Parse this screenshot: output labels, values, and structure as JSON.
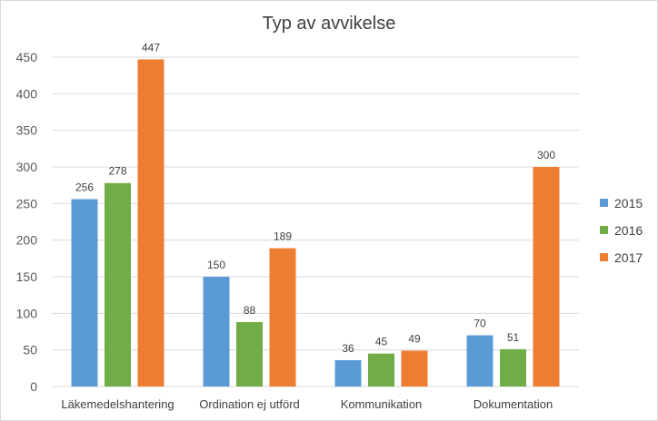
{
  "chart_data": {
    "type": "bar",
    "title": "Typ av avvikelse",
    "categories": [
      "Läkemedelshantering",
      "Ordination ej utförd",
      "Kommunikation",
      "Dokumentation"
    ],
    "series": [
      {
        "name": "2015",
        "values": [
          256,
          150,
          36,
          70
        ],
        "color": "#5b9bd5"
      },
      {
        "name": "2016",
        "values": [
          278,
          88,
          45,
          51
        ],
        "color": "#70ad47"
      },
      {
        "name": "2017",
        "values": [
          447,
          189,
          49,
          300
        ],
        "color": "#ed7d31"
      }
    ],
    "ylim": [
      0,
      450
    ],
    "yticks": [
      0,
      50,
      100,
      150,
      200,
      250,
      300,
      350,
      400,
      450
    ],
    "grid": true,
    "legend": "right",
    "gridline_color": "#d9d9d9"
  }
}
